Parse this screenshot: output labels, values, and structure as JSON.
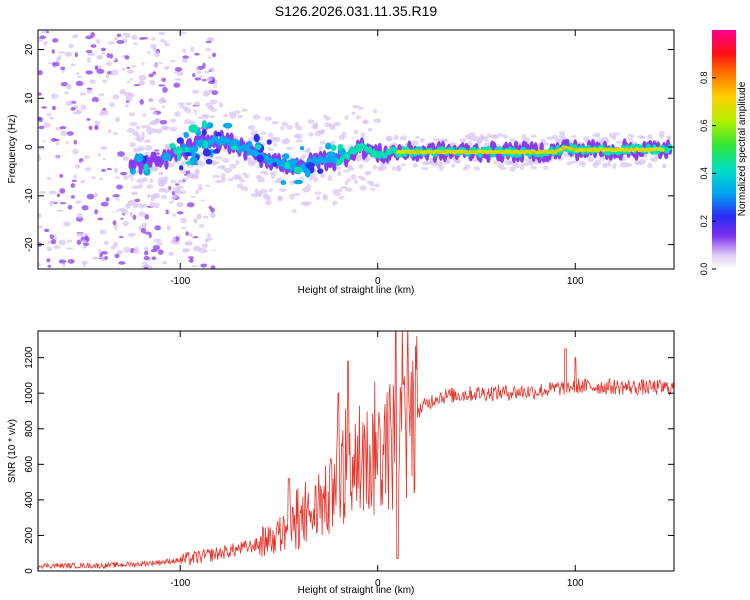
{
  "title": "S126.2026.031.11.35.R19",
  "chart_data": [
    {
      "type": "heatmap",
      "xlabel": "Height of straight line (km)",
      "ylabel": "Frequency (Hz)",
      "xlim": [
        -172,
        150
      ],
      "ylim": [
        -25,
        24
      ],
      "xticks": [
        -100,
        0,
        100
      ],
      "yticks": [
        -20,
        -10,
        0,
        10,
        20
      ],
      "colorbar": {
        "label": "Normalized spectral amplitude",
        "range": [
          0.0,
          1.0
        ],
        "ticks": [
          0.0,
          0.2,
          0.4,
          0.6,
          0.8
        ]
      },
      "ridge": [
        {
          "x": -120,
          "y": -3.5
        },
        {
          "x": -110,
          "y": -3
        },
        {
          "x": -100,
          "y": -1
        },
        {
          "x": -90,
          "y": 0.5
        },
        {
          "x": -80,
          "y": 1.5
        },
        {
          "x": -70,
          "y": 0
        },
        {
          "x": -60,
          "y": -2
        },
        {
          "x": -50,
          "y": -3
        },
        {
          "x": -40,
          "y": -4.5
        },
        {
          "x": -30,
          "y": -2.5
        },
        {
          "x": -20,
          "y": -3
        },
        {
          "x": -15,
          "y": -1.5
        },
        {
          "x": -10,
          "y": 0
        },
        {
          "x": -5,
          "y": -0.5
        },
        {
          "x": 0,
          "y": -1.5
        },
        {
          "x": 10,
          "y": -1
        },
        {
          "x": 40,
          "y": -1
        },
        {
          "x": 90,
          "y": -1
        },
        {
          "x": 95,
          "y": 0
        },
        {
          "x": 100,
          "y": -0.6
        },
        {
          "x": 140,
          "y": -0.5
        },
        {
          "x": 150,
          "y": -0.5
        }
      ]
    },
    {
      "type": "line",
      "xlabel": "Height of straight line (km)",
      "ylabel": "SNR (10 * v/v)",
      "xlim": [
        -172,
        150
      ],
      "ylim": [
        0,
        1350
      ],
      "xticks": [
        -100,
        0,
        100
      ],
      "yticks": [
        0,
        200,
        400,
        600,
        800,
        1000,
        1200
      ],
      "envelope": [
        {
          "x": -172,
          "y": 30
        },
        {
          "x": -140,
          "y": 30
        },
        {
          "x": -120,
          "y": 40
        },
        {
          "x": -100,
          "y": 60
        },
        {
          "x": -80,
          "y": 100
        },
        {
          "x": -60,
          "y": 150
        },
        {
          "x": -50,
          "y": 200
        },
        {
          "x": -40,
          "y": 260
        },
        {
          "x": -30,
          "y": 350
        },
        {
          "x": -20,
          "y": 450
        },
        {
          "x": -15,
          "y": 500
        },
        {
          "x": -10,
          "y": 600
        },
        {
          "x": 0,
          "y": 650
        },
        {
          "x": 5,
          "y": 700
        },
        {
          "x": 10,
          "y": 740
        },
        {
          "x": 15,
          "y": 800
        },
        {
          "x": 20,
          "y": 900
        },
        {
          "x": 30,
          "y": 980
        },
        {
          "x": 50,
          "y": 1000
        },
        {
          "x": 80,
          "y": 1010
        },
        {
          "x": 100,
          "y": 1040
        },
        {
          "x": 150,
          "y": 1030
        }
      ],
      "peaks": [
        {
          "x": -45,
          "y": 520
        },
        {
          "x": -20,
          "y": 1000
        },
        {
          "x": -15,
          "y": 1180
        },
        {
          "x": 9,
          "y": 1350
        },
        {
          "x": 13,
          "y": 1050
        },
        {
          "x": 95,
          "y": 1250
        },
        {
          "x": 100,
          "y": 1200
        }
      ],
      "dips": [
        {
          "x": 10,
          "y": 70
        }
      ],
      "color": "#e8342a"
    }
  ]
}
